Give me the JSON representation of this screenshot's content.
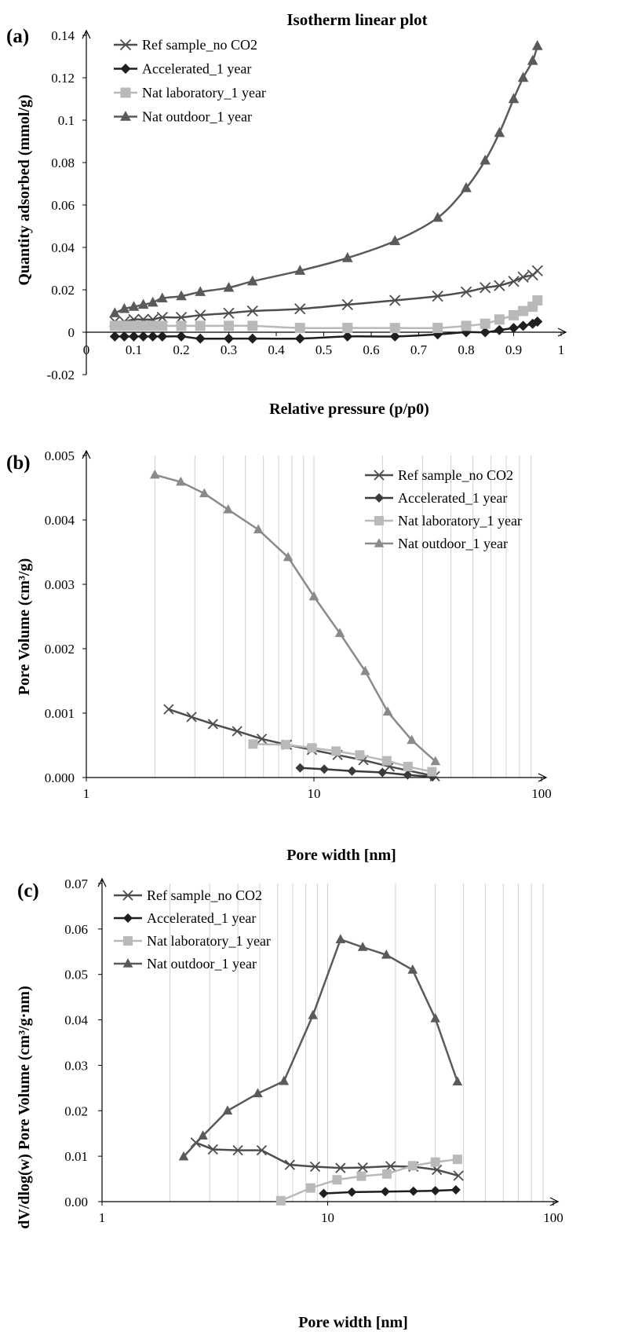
{
  "series_styles": [
    {
      "marker": "x",
      "color": "#4d4d4d"
    },
    {
      "marker": "diamond",
      "color": "#1e1e1e"
    },
    {
      "marker": "square",
      "color": "#b9b9b9"
    },
    {
      "marker": "triangle",
      "color": "#5a5a5a"
    }
  ],
  "series_styles_panel_b": [
    {
      "marker": "x",
      "color": "#4d4d4d"
    },
    {
      "marker": "diamond",
      "color": "#3a3a3a"
    },
    {
      "marker": "square",
      "color": "#b9b9b9"
    },
    {
      "marker": "triangle",
      "color": "#8a8a8a"
    }
  ],
  "chart_data": [
    {
      "panel": "(a)",
      "type": "line",
      "title": "Isotherm linear plot",
      "xlabel": "Relative pressure (p/p0)",
      "ylabel": "Quantity adsorbed (mmol/g)",
      "xlim": [
        0,
        1
      ],
      "ylim": [
        -0.02,
        0.14
      ],
      "xticks": [
        "0",
        "0.1",
        "0.2",
        "0.3",
        "0.4",
        "0.5",
        "0.6",
        "0.7",
        "0.8",
        "0.9",
        "1"
      ],
      "yticks": [
        "-0.02",
        "0",
        "0.02",
        "0.04",
        "0.06",
        "0.08",
        "0.1",
        "0.12",
        "0.14"
      ],
      "grid": false,
      "legend_position": "top-left",
      "series": [
        {
          "name": "Ref sample_no CO2",
          "x": [
            0.06,
            0.08,
            0.1,
            0.12,
            0.14,
            0.16,
            0.2,
            0.24,
            0.3,
            0.35,
            0.45,
            0.55,
            0.65,
            0.74,
            0.8,
            0.84,
            0.87,
            0.9,
            0.92,
            0.94,
            0.95
          ],
          "y": [
            0.005,
            0.005,
            0.006,
            0.006,
            0.006,
            0.007,
            0.007,
            0.008,
            0.009,
            0.01,
            0.011,
            0.013,
            0.015,
            0.017,
            0.019,
            0.021,
            0.022,
            0.024,
            0.026,
            0.027,
            0.029
          ]
        },
        {
          "name": "Accelerated_1 year",
          "x": [
            0.06,
            0.08,
            0.1,
            0.12,
            0.14,
            0.16,
            0.2,
            0.24,
            0.3,
            0.35,
            0.45,
            0.55,
            0.65,
            0.74,
            0.8,
            0.84,
            0.87,
            0.9,
            0.92,
            0.94,
            0.95
          ],
          "y": [
            -0.002,
            -0.002,
            -0.002,
            -0.002,
            -0.002,
            -0.002,
            -0.002,
            -0.003,
            -0.003,
            -0.003,
            -0.003,
            -0.002,
            -0.002,
            -0.001,
            0.0,
            0.0,
            0.001,
            0.002,
            0.003,
            0.004,
            0.005
          ]
        },
        {
          "name": "Nat laboratory_1 year",
          "x": [
            0.06,
            0.08,
            0.1,
            0.12,
            0.14,
            0.16,
            0.2,
            0.24,
            0.3,
            0.35,
            0.45,
            0.55,
            0.65,
            0.74,
            0.8,
            0.84,
            0.87,
            0.9,
            0.92,
            0.94,
            0.95
          ],
          "y": [
            0.003,
            0.003,
            0.003,
            0.003,
            0.003,
            0.003,
            0.003,
            0.003,
            0.003,
            0.003,
            0.002,
            0.002,
            0.002,
            0.002,
            0.003,
            0.004,
            0.006,
            0.008,
            0.01,
            0.012,
            0.015
          ]
        },
        {
          "name": "Nat outdoor_1 year",
          "x": [
            0.06,
            0.08,
            0.1,
            0.12,
            0.14,
            0.16,
            0.2,
            0.24,
            0.3,
            0.35,
            0.45,
            0.55,
            0.65,
            0.74,
            0.8,
            0.84,
            0.87,
            0.9,
            0.92,
            0.94,
            0.95
          ],
          "y": [
            0.009,
            0.011,
            0.012,
            0.013,
            0.014,
            0.016,
            0.017,
            0.019,
            0.021,
            0.024,
            0.029,
            0.035,
            0.043,
            0.054,
            0.068,
            0.081,
            0.094,
            0.11,
            0.12,
            0.128,
            0.135
          ]
        }
      ]
    },
    {
      "panel": "(b)",
      "type": "line",
      "title": "",
      "xlabel": "Pore width [nm]",
      "ylabel": "Pore Volume (cm³/g)",
      "xscale": "log",
      "xlim": [
        1,
        100
      ],
      "ylim": [
        0,
        0.005
      ],
      "xticks": [
        "1",
        "10",
        "100"
      ],
      "yticks": [
        "0.000",
        "0.001",
        "0.002",
        "0.003",
        "0.004",
        "0.005"
      ],
      "grid": "vertical minor gridlines",
      "legend_position": "top-right",
      "series": [
        {
          "name": "Ref sample_no CO2",
          "x": [
            2.3,
            2.9,
            3.6,
            4.6,
            5.9,
            7.6,
            9.8,
            12.7,
            16.5,
            21.5,
            34
          ],
          "y": [
            0.00106,
            0.00094,
            0.00083,
            0.00072,
            0.0006,
            0.00051,
            0.00043,
            0.00035,
            0.00027,
            0.00017,
            2e-05
          ]
        },
        {
          "name": "Accelerated_1 year",
          "x": [
            8.7,
            11.1,
            14.7,
            20.0,
            25.8,
            33.2
          ],
          "y": [
            0.00015,
            0.00013,
            0.0001,
            8e-05,
            4e-05,
            1e-05
          ]
        },
        {
          "name": "Nat laboratory_1 year",
          "x": [
            5.4,
            7.5,
            9.8,
            12.5,
            15.9,
            20.9,
            25.9,
            33.0
          ],
          "y": [
            0.00052,
            0.00051,
            0.00046,
            0.00041,
            0.00035,
            0.00026,
            0.00017,
            9e-05
          ]
        },
        {
          "name": "Nat outdoor_1 year",
          "x": [
            2.0,
            2.6,
            3.3,
            4.2,
            5.7,
            7.7,
            10.0,
            13.0,
            16.8,
            21.1,
            26.9,
            34.2
          ],
          "y": [
            0.0047,
            0.00459,
            0.00441,
            0.00416,
            0.00385,
            0.00342,
            0.00281,
            0.00224,
            0.00165,
            0.00102,
            0.00058,
            0.00025
          ]
        }
      ]
    },
    {
      "panel": "(c)",
      "type": "line",
      "title": "",
      "xlabel": "Pore width [nm]",
      "ylabel": "dV/dlog(w) Pore Volume (cm³/g·nm)",
      "xscale": "log",
      "xlim": [
        1,
        100
      ],
      "ylim": [
        0,
        0.07
      ],
      "xticks": [
        "1",
        "10",
        "100"
      ],
      "yticks": [
        "0.00",
        "0.01",
        "0.02",
        "0.03",
        "0.04",
        "0.05",
        "0.06",
        "0.07"
      ],
      "grid": "vertical minor gridlines",
      "legend_position": "top-left",
      "series": [
        {
          "name": "Ref sample_no CO2",
          "x": [
            2.6,
            3.1,
            4.0,
            5.1,
            6.8,
            8.8,
            11.4,
            14.3,
            19.0,
            24.0,
            30.5,
            38.0
          ],
          "y": [
            0.013,
            0.0115,
            0.0113,
            0.0113,
            0.0081,
            0.0077,
            0.0074,
            0.0075,
            0.0078,
            0.0077,
            0.007,
            0.0057
          ]
        },
        {
          "name": "Accelerated_1 year",
          "x": [
            9.6,
            12.8,
            18.0,
            24.0,
            30.0,
            37.0
          ],
          "y": [
            0.0018,
            0.0021,
            0.0022,
            0.0023,
            0.0024,
            0.0026
          ]
        },
        {
          "name": "Nat laboratory_1 year",
          "x": [
            6.2,
            8.4,
            11.0,
            14.1,
            18.3,
            23.8,
            30.0,
            37.6
          ],
          "y": [
            0.0002,
            0.003,
            0.0048,
            0.0056,
            0.0061,
            0.0079,
            0.0087,
            0.0093
          ]
        },
        {
          "name": "Nat outdoor_1 year",
          "x": [
            2.3,
            2.8,
            3.6,
            4.9,
            6.4,
            8.6,
            11.4,
            14.3,
            18.2,
            23.8,
            30.0,
            37.6
          ],
          "y": [
            0.0099,
            0.0145,
            0.02,
            0.0238,
            0.0265,
            0.041,
            0.0577,
            0.056,
            0.0543,
            0.051,
            0.0403,
            0.0264
          ]
        }
      ]
    }
  ]
}
